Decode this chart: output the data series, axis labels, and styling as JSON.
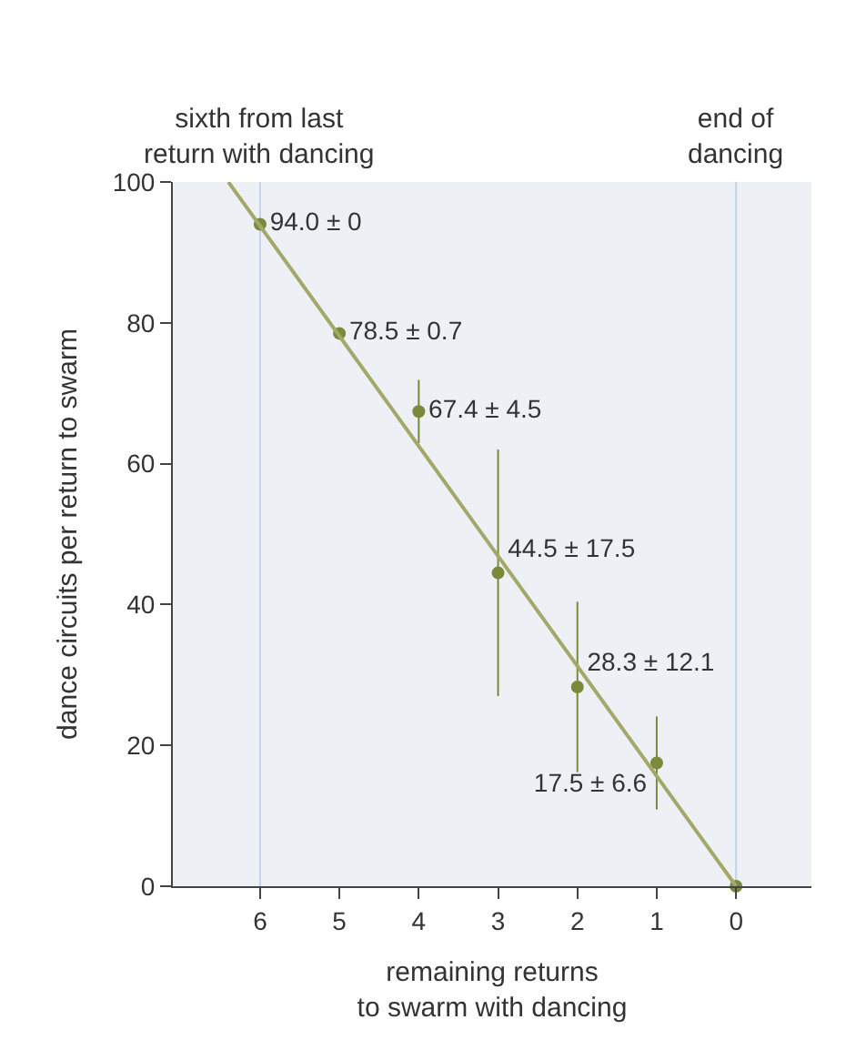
{
  "chart_data": {
    "type": "scatter",
    "xlabel": "remaining returns\nto swarm with dancing",
    "ylabel": "dance circuits per return to swarm",
    "xlim": [
      7.1,
      -0.95
    ],
    "xticks": [
      6,
      5,
      4,
      3,
      2,
      1,
      0
    ],
    "ylim": [
      0,
      100
    ],
    "yticks": [
      0,
      20,
      40,
      60,
      80,
      100
    ],
    "grid": false,
    "series": [
      {
        "color": "#7a8a3a",
        "marker": "circle",
        "x": [
          6,
          5,
          4,
          3,
          2,
          1,
          0
        ],
        "values": [
          94.0,
          78.5,
          67.4,
          44.5,
          28.3,
          17.5,
          0
        ],
        "errors": [
          0,
          0.7,
          4.5,
          17.5,
          12.1,
          6.6,
          null
        ],
        "value_labels": [
          "94.0 ± 0",
          "78.5 ± 0.7",
          "67.4 ± 4.5",
          "44.5 ± 17.5",
          "28.3 ± 12.1",
          "17.5 ± 6.6",
          null
        ]
      },
      {
        "type": "line",
        "color": "#a3a86a",
        "x": [
          6.4,
          0
        ],
        "values": [
          100,
          0
        ]
      }
    ],
    "ref_lines": [
      {
        "axis": "x",
        "value": 6,
        "label": "sixth from last\nreturn with dancing",
        "color": "#c5d3e8"
      },
      {
        "axis": "x",
        "value": 0,
        "label": "end of\ndancing",
        "color": "#c5d3e8"
      }
    ]
  }
}
